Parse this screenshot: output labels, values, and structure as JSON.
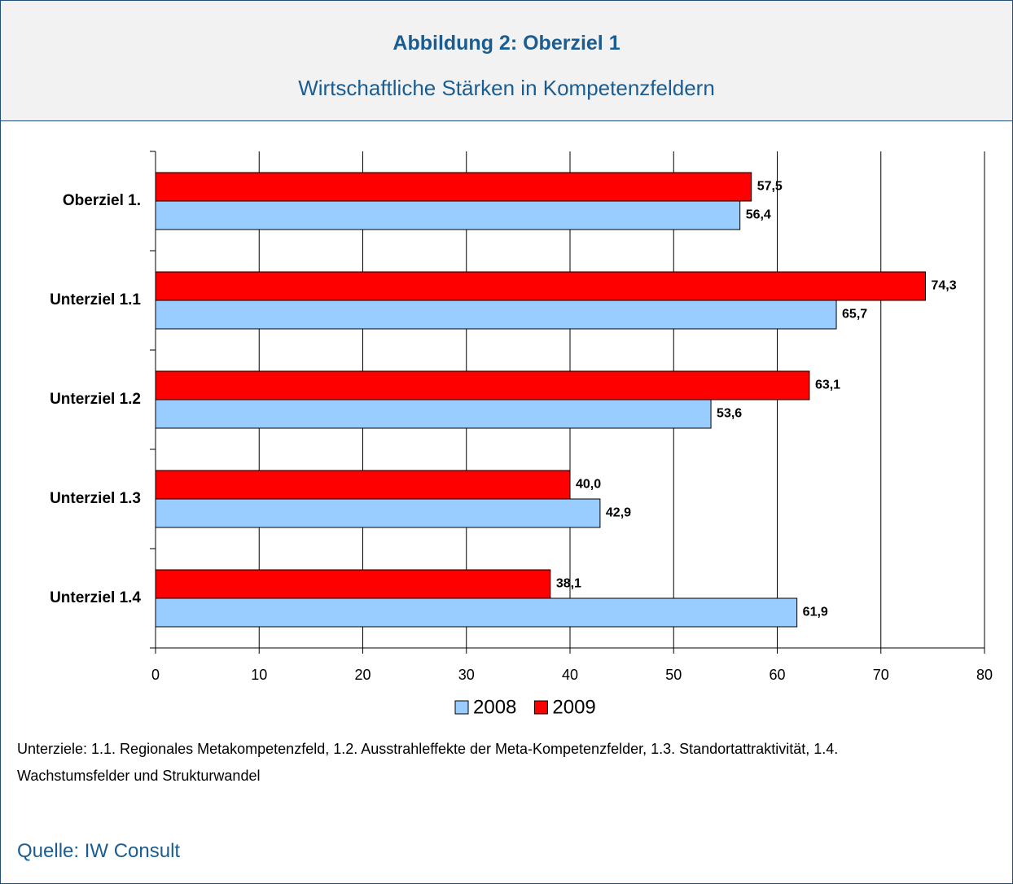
{
  "chart_data": {
    "type": "barh",
    "title": "Abbildung 2: Oberziel 1",
    "subtitle": "Wirtschaftliche Stärken in Kompetenzfeldern",
    "categories": [
      "Oberziel 1.",
      "Unterziel 1.1",
      "Unterziel 1.2",
      "Unterziel 1.3",
      "Unterziel 1.4"
    ],
    "series": [
      {
        "name": "2008",
        "color": "#99ccff",
        "values": [
          56.4,
          65.7,
          53.6,
          42.9,
          61.9
        ],
        "value_labels": [
          "56,4",
          "65,7",
          "53,6",
          "42,9",
          "61,9"
        ]
      },
      {
        "name": "2009",
        "color": "#ff0000",
        "values": [
          57.5,
          74.3,
          63.1,
          40.0,
          38.1
        ],
        "value_labels": [
          "57,5",
          "74,3",
          "63,1",
          "40,0",
          "38,1"
        ]
      }
    ],
    "xlim": [
      0,
      80
    ],
    "xticks": [
      0,
      10,
      20,
      30,
      40,
      50,
      60,
      70,
      80
    ],
    "grid": true,
    "legend": "bottom"
  },
  "footnote": "Unterziele: 1.1. Regionales Metakompetenzfeld, 1.2. Ausstrahleffekte der Meta-Kompetenzfelder, 1.3. Standortattraktivität, 1.4. Wachstumsfelder und Strukturwandel",
  "source": "Quelle: IW Consult"
}
